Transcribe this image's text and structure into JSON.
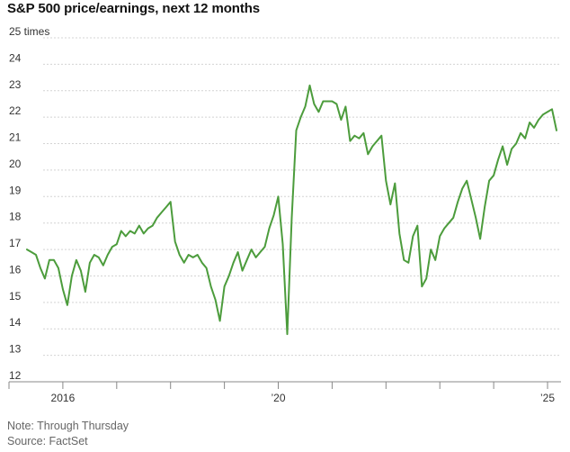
{
  "chart_data": {
    "type": "line",
    "title": "S&P 500 price/earnings, next 12 months",
    "y_unit_label": "25 times",
    "ylim": [
      12,
      25
    ],
    "y_ticks": [
      12,
      13,
      14,
      15,
      16,
      17,
      18,
      19,
      20,
      21,
      22,
      23,
      24,
      25
    ],
    "y_tick_labels": [
      "12",
      "13",
      "14",
      "15",
      "16",
      "17",
      "18",
      "19",
      "20",
      "21",
      "22",
      "23",
      "24",
      "25 times"
    ],
    "xlim": [
      "2015-01-01",
      "2025-04-01"
    ],
    "x_ticks": [
      "2015",
      "2016",
      "2017",
      "2018",
      "2019",
      "2020",
      "2021",
      "2022",
      "2023",
      "2024",
      "2025"
    ],
    "x_tick_labels": [
      {
        "date": "2016",
        "label": "2016"
      },
      {
        "date": "2020",
        "label": "’20"
      },
      {
        "date": "2025",
        "label": "’25"
      }
    ],
    "grid": true,
    "color": "#4c9c3c",
    "series": [
      {
        "x": [
          "2015-05",
          "2015-06",
          "2015-07",
          "2015-08",
          "2015-09",
          "2015-10",
          "2015-11",
          "2015-12",
          "2016-01",
          "2016-02",
          "2016-03",
          "2016-04",
          "2016-05",
          "2016-06",
          "2016-07",
          "2016-08",
          "2016-09",
          "2016-10",
          "2016-11",
          "2016-12",
          "2017-01",
          "2017-02",
          "2017-03",
          "2017-04",
          "2017-05",
          "2017-06",
          "2017-07",
          "2017-08",
          "2017-09",
          "2017-10",
          "2017-11",
          "2017-12",
          "2018-01",
          "2018-02",
          "2018-03",
          "2018-04",
          "2018-05",
          "2018-06",
          "2018-07",
          "2018-08",
          "2018-09",
          "2018-10",
          "2018-11",
          "2018-12",
          "2019-01",
          "2019-02",
          "2019-03",
          "2019-04",
          "2019-05",
          "2019-06",
          "2019-07",
          "2019-08",
          "2019-09",
          "2019-10",
          "2019-11",
          "2019-12",
          "2020-01",
          "2020-02",
          "2020-03",
          "2020-04",
          "2020-05",
          "2020-06",
          "2020-07",
          "2020-08",
          "2020-09",
          "2020-10",
          "2020-11",
          "2020-12",
          "2021-01",
          "2021-02",
          "2021-03",
          "2021-04",
          "2021-05",
          "2021-06",
          "2021-07",
          "2021-08",
          "2021-09",
          "2021-10",
          "2021-11",
          "2021-12",
          "2022-01",
          "2022-02",
          "2022-03",
          "2022-04",
          "2022-05",
          "2022-06",
          "2022-07",
          "2022-08",
          "2022-09",
          "2022-10",
          "2022-11",
          "2022-12",
          "2023-01",
          "2023-02",
          "2023-03",
          "2023-04",
          "2023-05",
          "2023-06",
          "2023-07",
          "2023-08",
          "2023-09",
          "2023-10",
          "2023-11",
          "2023-12",
          "2024-01",
          "2024-02",
          "2024-03",
          "2024-04",
          "2024-05",
          "2024-06",
          "2024-07",
          "2024-08",
          "2024-09",
          "2024-10",
          "2024-11",
          "2024-12",
          "2025-01",
          "2025-02",
          "2025-03"
        ],
        "y": [
          17.0,
          16.9,
          16.8,
          16.3,
          15.9,
          16.6,
          16.6,
          16.3,
          15.5,
          14.9,
          16.0,
          16.6,
          16.2,
          15.4,
          16.5,
          16.8,
          16.7,
          16.4,
          16.8,
          17.1,
          17.2,
          17.7,
          17.5,
          17.7,
          17.6,
          17.9,
          17.6,
          17.8,
          17.9,
          18.2,
          18.4,
          18.6,
          18.8,
          17.3,
          16.8,
          16.5,
          16.8,
          16.7,
          16.8,
          16.5,
          16.3,
          15.6,
          15.1,
          14.3,
          15.6,
          16.0,
          16.5,
          16.9,
          16.2,
          16.6,
          17.0,
          16.7,
          16.9,
          17.1,
          17.8,
          18.3,
          19.0,
          17.2,
          13.8,
          18.2,
          21.5,
          22.0,
          22.4,
          23.2,
          22.5,
          22.2,
          22.6,
          22.6,
          22.6,
          22.5,
          21.9,
          22.4,
          21.1,
          21.3,
          21.2,
          21.4,
          20.6,
          20.9,
          21.1,
          21.3,
          19.6,
          18.7,
          19.5,
          17.6,
          16.6,
          16.5,
          17.5,
          17.9,
          15.6,
          15.9,
          17.0,
          16.6,
          17.5,
          17.8,
          18.0,
          18.2,
          18.8,
          19.3,
          19.6,
          18.9,
          18.2,
          17.4,
          18.6,
          19.6,
          19.8,
          20.4,
          20.9,
          20.2,
          20.8,
          21.0,
          21.4,
          21.2,
          21.8,
          21.6,
          21.9,
          22.1,
          22.2,
          22.3,
          21.5
        ]
      }
    ]
  },
  "footer": {
    "note": "Note: Through Thursday",
    "source": "Source: FactSet"
  }
}
